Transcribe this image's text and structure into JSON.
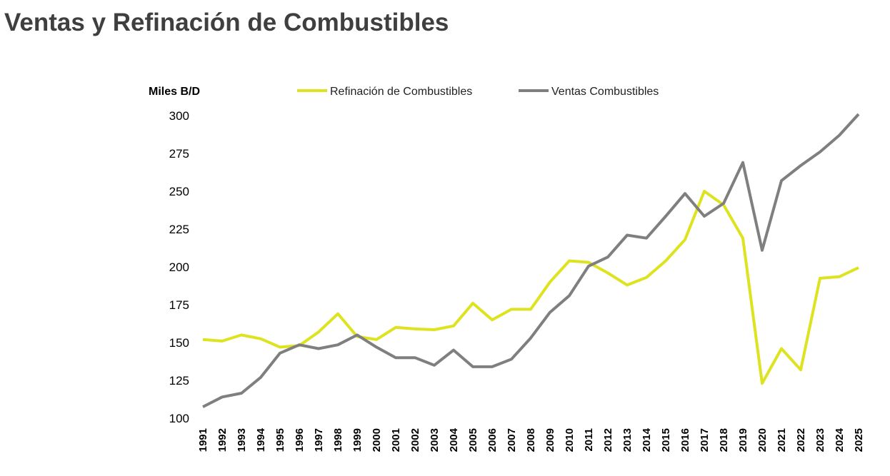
{
  "chart_data": {
    "type": "line",
    "title": "Ventas y Refinación de Combustibles",
    "ylabel": "Miles B/D",
    "xlabel": "",
    "ylim": [
      100,
      300
    ],
    "yticks": [
      100,
      125,
      150,
      175,
      200,
      225,
      250,
      275,
      300
    ],
    "grid": false,
    "legend_position": "top",
    "x": [
      1991,
      1992,
      1993,
      1994,
      1995,
      1996,
      1997,
      1998,
      1999,
      2000,
      2001,
      2002,
      2003,
      2004,
      2005,
      2006,
      2007,
      2008,
      2009,
      2010,
      2011,
      2012,
      2013,
      2014,
      2015,
      2016,
      2017,
      2018,
      2019,
      2020,
      2021,
      2022,
      2023,
      2024,
      2025
    ],
    "series": [
      {
        "name": "Refinación de Combustibles",
        "color": "#dde31e",
        "values": [
          152,
          151,
          155,
          152.5,
          147,
          148,
          157,
          169,
          154,
          152,
          160,
          159,
          158.5,
          161,
          176,
          165,
          172,
          172,
          190,
          204,
          203,
          196,
          188,
          193,
          204,
          218,
          250,
          241,
          219,
          123,
          146,
          132,
          192.5,
          193.5,
          199.5
        ]
      },
      {
        "name": "Ventas Combustibles",
        "color": "#7f7f7f",
        "values": [
          107.5,
          114,
          116.5,
          127,
          143,
          148.5,
          146,
          148.5,
          155,
          147,
          140,
          140,
          135,
          145,
          134,
          134,
          139,
          153,
          170,
          181,
          200.5,
          206.5,
          221,
          219,
          233.5,
          248.5,
          233.5,
          242,
          269,
          211,
          257,
          267,
          276,
          287,
          301
        ]
      }
    ]
  }
}
